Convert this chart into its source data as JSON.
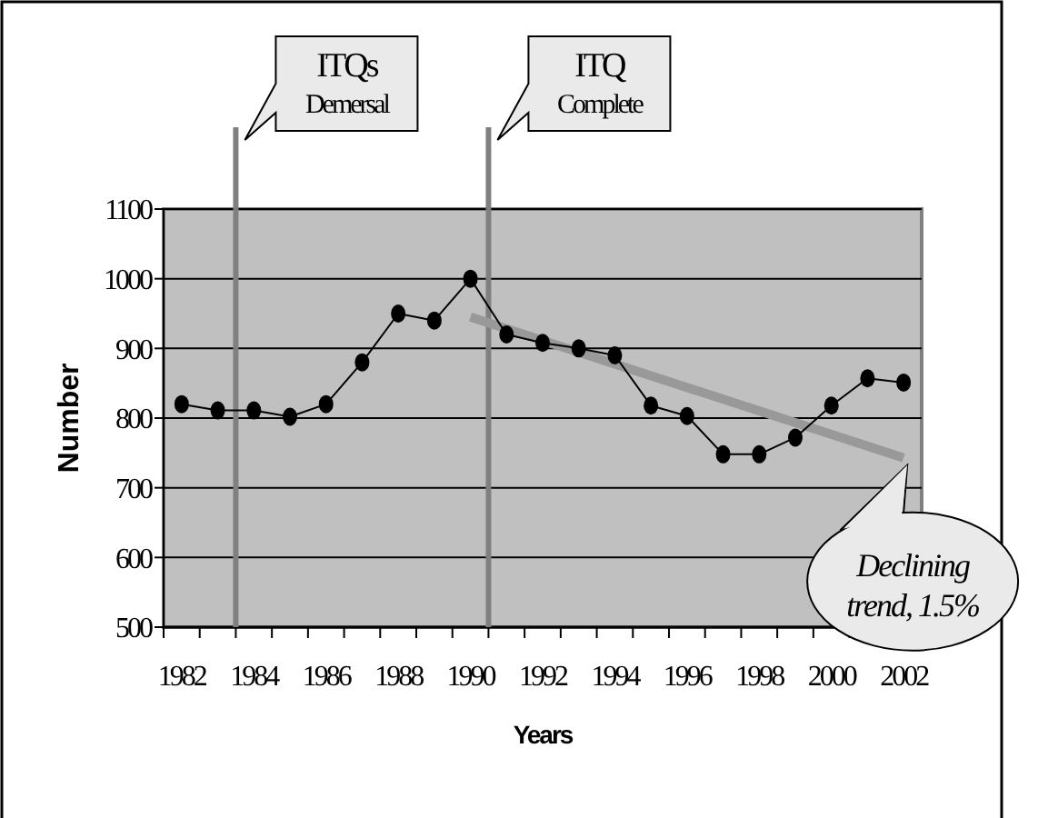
{
  "chart_data": {
    "type": "line",
    "xlabel": "Years",
    "ylabel": "Number",
    "xlim": [
      1981.5,
      2002.5
    ],
    "xticks": [
      1982,
      1984,
      1986,
      1988,
      1990,
      1992,
      1994,
      1996,
      1998,
      2000,
      2002,
      {
        "value": 1981.5,
        "label": null
      },
      {
        "value": 1982.5,
        "label": null
      },
      {
        "value": 1983.5,
        "label": null
      },
      {
        "value": 1984.5,
        "label": null
      },
      {
        "value": 1985.5,
        "label": null
      },
      {
        "value": 1986.5,
        "label": null
      },
      {
        "value": 1987.5,
        "label": null
      },
      {
        "value": 1988.5,
        "label": null
      },
      {
        "value": 1989.5,
        "label": null
      },
      {
        "value": 1990.5,
        "label": null
      },
      {
        "value": 1991.5,
        "label": null
      },
      {
        "value": 1992.5,
        "label": null
      },
      {
        "value": 1993.5,
        "label": null
      },
      {
        "value": 1994.5,
        "label": null
      },
      {
        "value": 1995.5,
        "label": null
      },
      {
        "value": 1996.5,
        "label": null
      },
      {
        "value": 1997.5,
        "label": null
      },
      {
        "value": 1998.5,
        "label": null
      },
      {
        "value": 1999.5,
        "label": null
      },
      {
        "value": 2000.5,
        "label": null
      },
      {
        "value": 2001.5,
        "label": null
      },
      {
        "value": 2002.5,
        "label": null
      }
    ],
    "ylim": [
      500,
      1100
    ],
    "yticks": [
      500,
      600,
      700,
      800,
      900,
      1000,
      1100
    ],
    "grid": "y",
    "series": [
      {
        "type": "line",
        "color": "#000000",
        "marker": "circle",
        "x": [
          1982,
          1983,
          1984,
          1985,
          1986,
          1987,
          1988,
          1989,
          1990,
          1991,
          1992,
          1993,
          1994,
          1995,
          1996,
          1997,
          1998,
          1999,
          2000,
          2001,
          2002
        ],
        "values": [
          820,
          811,
          811,
          802,
          820,
          880,
          950,
          940,
          1000,
          920,
          908,
          900,
          890,
          818,
          803,
          748,
          748,
          772,
          818,
          857,
          851
        ]
      },
      {
        "type": "line",
        "color": "#999999",
        "marker": "none",
        "x": [
          1990,
          2002
        ],
        "values": [
          945,
          743
        ]
      }
    ],
    "ref_lines": [
      {
        "axis": "x",
        "value": 1983.5,
        "label": "ITQs Demersal",
        "color": "#808080"
      },
      {
        "axis": "x",
        "value": 1990.5,
        "label": "ITQ Complete",
        "color": "#808080"
      }
    ],
    "annotations": [
      {
        "text": "Declining trend, 1.5%",
        "x": 2002,
        "y": 743
      }
    ]
  }
}
